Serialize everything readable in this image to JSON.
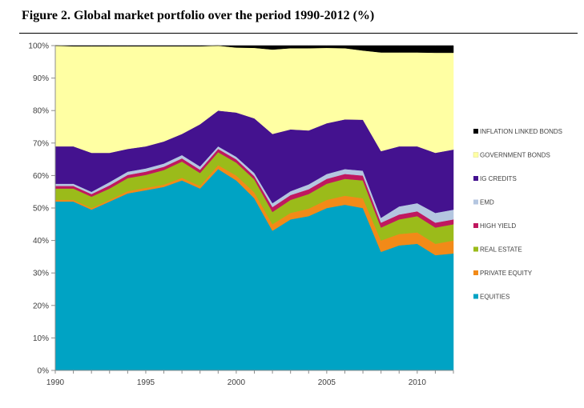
{
  "figure": {
    "title": "Figure 2. Global market portfolio over the period 1990-2012 (%)"
  },
  "colors": {
    "frame": "#000000",
    "axis": "#8c8c8c",
    "text": "#3f3f3f"
  },
  "chart_data": {
    "type": "area",
    "stacked": true,
    "title": "Global market portfolio over the period 1990-2012 (%)",
    "xlabel": "",
    "ylabel": "",
    "ylim": [
      0,
      100
    ],
    "xlim": [
      1990,
      2012
    ],
    "grid": false,
    "legend_position": "right",
    "y_ticks": [
      "0%",
      "10%",
      "20%",
      "30%",
      "40%",
      "50%",
      "60%",
      "70%",
      "80%",
      "90%",
      "100%"
    ],
    "x_ticks": [
      "1990",
      "1995",
      "2000",
      "2005",
      "2010"
    ],
    "x_tick_values": [
      1990,
      1995,
      2000,
      2005,
      2010
    ],
    "x": [
      1990,
      1991,
      1992,
      1993,
      1994,
      1995,
      1996,
      1997,
      1998,
      1999,
      2000,
      2001,
      2002,
      2003,
      2004,
      2005,
      2006,
      2007,
      2008,
      2009,
      2010,
      2011,
      2012
    ],
    "series": [
      {
        "name": "EQUITIES",
        "color": "#00A3C4",
        "values": [
          52,
          52,
          49.5,
          52,
          54.5,
          55.5,
          56.5,
          58.5,
          56,
          62,
          58.5,
          53,
          43,
          46.5,
          47.5,
          50,
          51,
          50,
          36.5,
          38.5,
          39,
          35.5,
          36
        ]
      },
      {
        "name": "PRIVATE EQUITY",
        "color": "#F28A18",
        "values": [
          0.5,
          0.5,
          0.5,
          0.5,
          0.7,
          0.7,
          0.7,
          0.8,
          0.8,
          1.2,
          1.5,
          1.8,
          2,
          2,
          2.3,
          2.5,
          2.8,
          3,
          3.5,
          3.5,
          3.5,
          3.5,
          4
        ]
      },
      {
        "name": "REAL ESTATE",
        "color": "#9BBB1A",
        "values": [
          3.5,
          3.5,
          3.5,
          3.5,
          4,
          4,
          4.5,
          5,
          4,
          4,
          4,
          4,
          3.8,
          4,
          4.5,
          5,
          5.2,
          5.5,
          4,
          4.5,
          5,
          5,
          5
        ]
      },
      {
        "name": "HIGH YIELD",
        "color": "#C0185F",
        "values": [
          0.8,
          0.8,
          0.8,
          1,
          1,
          1,
          1,
          1,
          1,
          1,
          1,
          1,
          1.5,
          1.5,
          1.5,
          1.5,
          1.5,
          1.5,
          1.5,
          1.5,
          1.5,
          1.5,
          1.5
        ]
      },
      {
        "name": "EMD",
        "color": "#B4C6E0",
        "values": [
          0.7,
          0.7,
          0.7,
          1,
          1,
          1,
          1,
          1,
          1,
          0.8,
          0.8,
          1,
          1.2,
          1.2,
          1.5,
          1.5,
          1.5,
          1.5,
          1.5,
          2.5,
          2.5,
          3,
          3
        ]
      },
      {
        "name": "IG CREDITS",
        "color": "#44128F",
        "values": [
          11.5,
          11.5,
          12,
          9,
          7,
          6.8,
          6.8,
          6.5,
          13,
          11,
          13.6,
          16.8,
          21.3,
          19,
          16.6,
          15.6,
          15.3,
          15.7,
          20.5,
          18.5,
          17.5,
          18.5,
          18.5
        ]
      },
      {
        "name": "GOVERNMENT BONDS",
        "color": "#FFFFA3",
        "values": [
          31,
          30.8,
          32.8,
          32.8,
          31.6,
          30.8,
          29.3,
          27,
          24,
          20,
          20,
          21.7,
          26,
          25,
          25.3,
          23.2,
          21.9,
          21.3,
          30.4,
          28.9,
          28.9,
          30.8,
          29.8
        ]
      },
      {
        "name": "INFLATION LINKED BONDS",
        "color": "#000000",
        "values": [
          0,
          0.2,
          0.2,
          0.2,
          0.2,
          0.2,
          0.2,
          0.2,
          0.2,
          0,
          0.6,
          0.7,
          1.2,
          0.8,
          0.8,
          0.7,
          0.8,
          1.5,
          2.1,
          2.1,
          2.1,
          2.2,
          2.2
        ]
      }
    ]
  }
}
